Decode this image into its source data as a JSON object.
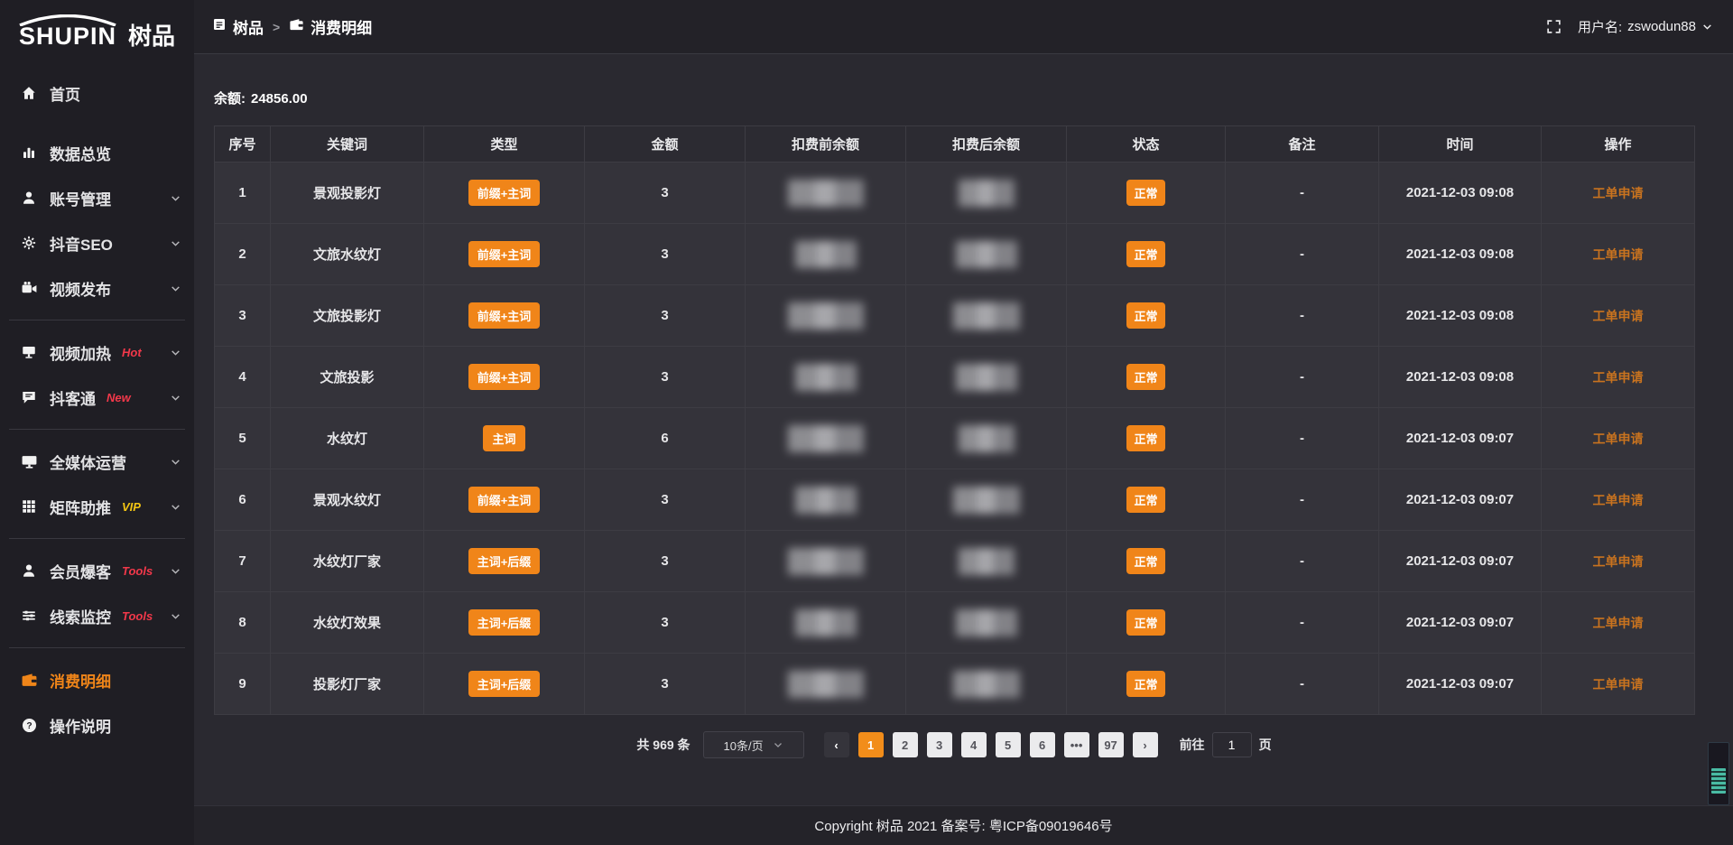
{
  "logo": {
    "text_en": "SHUPIN",
    "text_cn": "树品"
  },
  "topbar": {
    "breadcrumb": [
      {
        "label": "树品"
      },
      {
        "label": "消费明细"
      }
    ],
    "separator": ">",
    "username_label": "用户名:",
    "username": "zswodun88"
  },
  "sidebar": {
    "items": [
      {
        "label": "首页",
        "icon": "home-icon",
        "tag": "",
        "chevron": false,
        "active": false,
        "divider_after": false
      },
      {
        "label": "数据总览",
        "icon": "chart-icon",
        "tag": "",
        "chevron": false,
        "active": false,
        "divider_after": false
      },
      {
        "label": "账号管理",
        "icon": "user-icon",
        "tag": "",
        "chevron": true,
        "active": false,
        "divider_after": false
      },
      {
        "label": "抖音SEO",
        "icon": "gear-icon",
        "tag": "",
        "chevron": true,
        "active": false,
        "divider_after": false
      },
      {
        "label": "视频发布",
        "icon": "video-icon",
        "tag": "",
        "chevron": true,
        "active": false,
        "divider_after": true
      },
      {
        "label": "视频加热",
        "icon": "tv-icon",
        "tag": "Hot",
        "tag_color": "#f2384a",
        "chevron": true,
        "active": false,
        "divider_after": false
      },
      {
        "label": "抖客通",
        "icon": "chat-icon",
        "tag": "New",
        "tag_color": "#f2384a",
        "chevron": true,
        "active": false,
        "divider_after": true
      },
      {
        "label": "全媒体运营",
        "icon": "monitor-icon",
        "tag": "",
        "chevron": true,
        "active": false,
        "divider_after": false
      },
      {
        "label": "矩阵助推",
        "icon": "grid-icon",
        "tag": "VIP",
        "tag_color": "#f3c513",
        "chevron": true,
        "active": false,
        "divider_after": true
      },
      {
        "label": "会员爆客",
        "icon": "member-icon",
        "tag": "Tools",
        "tag_color": "#f2384a",
        "chevron": true,
        "active": false,
        "divider_after": false
      },
      {
        "label": "线索监控",
        "icon": "sliders-icon",
        "tag": "Tools",
        "tag_color": "#f2384a",
        "chevron": true,
        "active": false,
        "divider_after": true
      },
      {
        "label": "消费明细",
        "icon": "wallet-icon",
        "tag": "",
        "chevron": false,
        "active": true,
        "divider_after": false
      },
      {
        "label": "操作说明",
        "icon": "question-icon",
        "tag": "",
        "chevron": false,
        "active": false,
        "divider_after": false
      }
    ]
  },
  "balance": {
    "label": "余额:",
    "value": "24856.00"
  },
  "table": {
    "headers": [
      "序号",
      "关键词",
      "类型",
      "金额",
      "扣费前余额",
      "扣费后余额",
      "状态",
      "备注",
      "时间",
      "操作"
    ],
    "rows": [
      {
        "index": "1",
        "keyword": "景观投影灯",
        "type_tag": "前缀+主词",
        "amount": "3",
        "balance_before_masked": true,
        "balance_after_masked": true,
        "status": "正常",
        "note": "-",
        "time": "2021-12-03 09:08",
        "action": "工单申请"
      },
      {
        "index": "2",
        "keyword": "文旅水纹灯",
        "type_tag": "前缀+主词",
        "amount": "3",
        "balance_before_masked": true,
        "balance_after_masked": true,
        "status": "正常",
        "note": "-",
        "time": "2021-12-03 09:08",
        "action": "工单申请"
      },
      {
        "index": "3",
        "keyword": "文旅投影灯",
        "type_tag": "前缀+主词",
        "amount": "3",
        "balance_before_masked": true,
        "balance_after_masked": true,
        "status": "正常",
        "note": "-",
        "time": "2021-12-03 09:08",
        "action": "工单申请"
      },
      {
        "index": "4",
        "keyword": "文旅投影",
        "type_tag": "前缀+主词",
        "amount": "3",
        "balance_before_masked": true,
        "balance_after_masked": true,
        "status": "正常",
        "note": "-",
        "time": "2021-12-03 09:08",
        "action": "工单申请"
      },
      {
        "index": "5",
        "keyword": "水纹灯",
        "type_tag": "主词",
        "amount": "6",
        "balance_before_masked": true,
        "balance_after_masked": true,
        "status": "正常",
        "note": "-",
        "time": "2021-12-03 09:07",
        "action": "工单申请"
      },
      {
        "index": "6",
        "keyword": "景观水纹灯",
        "type_tag": "前缀+主词",
        "amount": "3",
        "balance_before_masked": true,
        "balance_after_masked": true,
        "status": "正常",
        "note": "-",
        "time": "2021-12-03 09:07",
        "action": "工单申请"
      },
      {
        "index": "7",
        "keyword": "水纹灯厂家",
        "type_tag": "主词+后缀",
        "amount": "3",
        "balance_before_masked": true,
        "balance_after_masked": true,
        "status": "正常",
        "note": "-",
        "time": "2021-12-03 09:07",
        "action": "工单申请"
      },
      {
        "index": "8",
        "keyword": "水纹灯效果",
        "type_tag": "主词+后缀",
        "amount": "3",
        "balance_before_masked": true,
        "balance_after_masked": true,
        "status": "正常",
        "note": "-",
        "time": "2021-12-03 09:07",
        "action": "工单申请"
      },
      {
        "index": "9",
        "keyword": "投影灯厂家",
        "type_tag": "主词+后缀",
        "amount": "3",
        "balance_before_masked": true,
        "balance_after_masked": true,
        "status": "正常",
        "note": "-",
        "time": "2021-12-03 09:07",
        "action": "工单申请"
      }
    ]
  },
  "pagination": {
    "total": "共 969 条",
    "page_size": "10条/页",
    "pages": [
      "1",
      "2",
      "3",
      "4",
      "5",
      "6",
      "•••",
      "97"
    ],
    "active_page": "1",
    "goto_label": "前往",
    "goto_value": "1",
    "goto_suffix": "页"
  },
  "footer": {
    "copyright": "Copyright 树品 2021 备案号: 粤ICP备09019646号"
  },
  "colors": {
    "accent_orange": "#f08519",
    "page_active_orange": "#f28d1a",
    "link_orange": "#c9731f",
    "sidebar_active_orange": "#ef8519",
    "tag_red": "#f2384a",
    "tag_vip_yellow": "#f3c513"
  }
}
